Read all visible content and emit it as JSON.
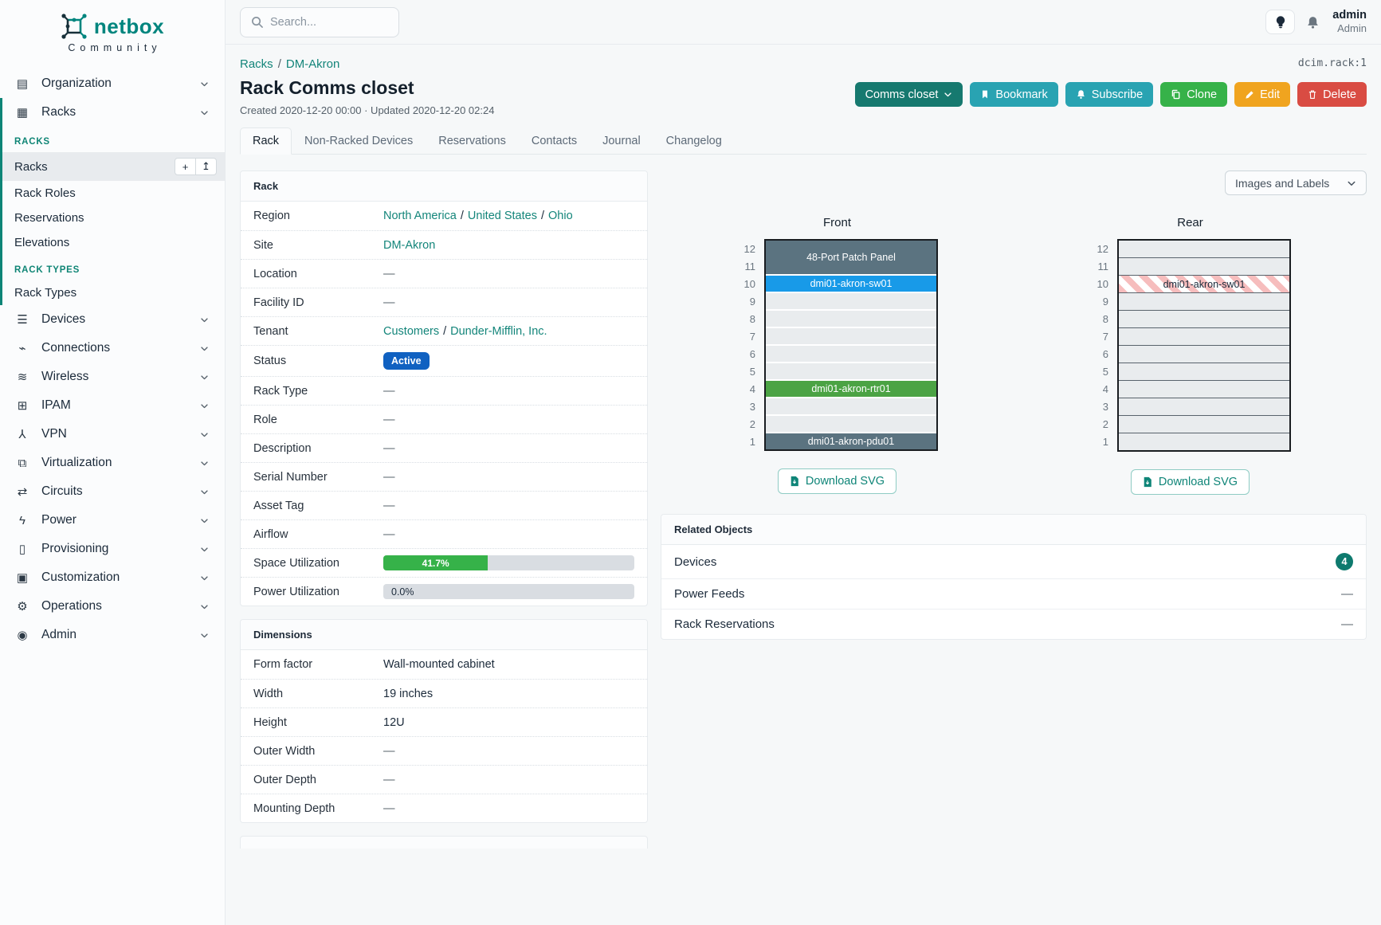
{
  "brand": {
    "name": "netbox",
    "tagline": "Community"
  },
  "topbar": {
    "search_placeholder": "Search...",
    "user_name": "admin",
    "user_role": "Admin"
  },
  "page": {
    "breadcrumbs": [
      "Racks",
      "DM-Akron"
    ],
    "object_id": "dcim.rack:1",
    "title": "Rack Comms closet",
    "meta": "Created 2020-12-20 00:00 · Updated 2020-12-20 02:24",
    "actions": [
      {
        "name": "comms-closet-dropdown",
        "label": "Comms closet",
        "style": "teal-dark",
        "icon": "chevron-down-icon",
        "icon_position": "after"
      },
      {
        "name": "bookmark-button",
        "label": "Bookmark",
        "style": "cyan",
        "icon": "bookmark-icon"
      },
      {
        "name": "subscribe-button",
        "label": "Subscribe",
        "style": "cyan",
        "icon": "bell-plus-icon"
      },
      {
        "name": "clone-button",
        "label": "Clone",
        "style": "green",
        "icon": "copy-icon"
      },
      {
        "name": "edit-button",
        "label": "Edit",
        "style": "orange",
        "icon": "pencil-icon"
      },
      {
        "name": "delete-button",
        "label": "Delete",
        "style": "red",
        "icon": "trash-icon"
      }
    ],
    "tabs": [
      {
        "label": "Rack",
        "active": true
      },
      {
        "label": "Non-Racked Devices",
        "active": false
      },
      {
        "label": "Reservations",
        "active": false
      },
      {
        "label": "Contacts",
        "active": false
      },
      {
        "label": "Journal",
        "active": false
      },
      {
        "label": "Changelog",
        "active": false
      }
    ]
  },
  "sidebar": {
    "items": [
      {
        "label": "Organization",
        "icon": "organization-icon",
        "glyph": "▤"
      },
      {
        "label": "Racks",
        "icon": "racks-icon",
        "glyph": "▦",
        "expanded": true,
        "groups": [
          {
            "heading": "RACKS",
            "links": [
              {
                "label": "Racks",
                "active": true,
                "actions": [
                  {
                    "icon": "plus-icon",
                    "glyph": "+"
                  },
                  {
                    "icon": "import-icon",
                    "glyph": "↥"
                  }
                ]
              },
              {
                "label": "Rack Roles",
                "active": false
              },
              {
                "label": "Reservations",
                "active": false
              },
              {
                "label": "Elevations",
                "active": false
              }
            ]
          },
          {
            "heading": "RACK TYPES",
            "links": [
              {
                "label": "Rack Types",
                "active": false
              }
            ]
          }
        ]
      },
      {
        "label": "Devices",
        "icon": "devices-icon",
        "glyph": "☰"
      },
      {
        "label": "Connections",
        "icon": "connections-icon",
        "glyph": "⌁"
      },
      {
        "label": "Wireless",
        "icon": "wireless-icon",
        "glyph": "≋"
      },
      {
        "label": "IPAM",
        "icon": "ipam-icon",
        "glyph": "⊞"
      },
      {
        "label": "VPN",
        "icon": "vpn-icon",
        "glyph": "⅄"
      },
      {
        "label": "Virtualization",
        "icon": "virtualization-icon",
        "glyph": "⧉"
      },
      {
        "label": "Circuits",
        "icon": "circuits-icon",
        "glyph": "⇄"
      },
      {
        "label": "Power",
        "icon": "power-icon",
        "glyph": "ϟ"
      },
      {
        "label": "Provisioning",
        "icon": "provisioning-icon",
        "glyph": "▯"
      },
      {
        "label": "Customization",
        "icon": "customization-icon",
        "glyph": "▣"
      },
      {
        "label": "Operations",
        "icon": "operations-icon",
        "glyph": "⚙"
      },
      {
        "label": "Admin",
        "icon": "admin-icon",
        "glyph": "◉"
      }
    ]
  },
  "rack_panel": {
    "title": "Rack",
    "rows": [
      {
        "label": "Region",
        "type": "links",
        "parts": [
          "North America",
          "United States",
          "Ohio"
        ]
      },
      {
        "label": "Site",
        "type": "links",
        "parts": [
          "DM-Akron"
        ]
      },
      {
        "label": "Location",
        "type": "empty",
        "value": "—"
      },
      {
        "label": "Facility ID",
        "type": "empty",
        "value": "—"
      },
      {
        "label": "Tenant",
        "type": "links",
        "parts": [
          "Customers",
          "Dunder-Mifflin, Inc."
        ]
      },
      {
        "label": "Status",
        "type": "badge",
        "value": "Active",
        "color": "#1061c1"
      },
      {
        "label": "Rack Type",
        "type": "empty",
        "value": "—"
      },
      {
        "label": "Role",
        "type": "empty",
        "value": "—"
      },
      {
        "label": "Description",
        "type": "empty",
        "value": "—"
      },
      {
        "label": "Serial Number",
        "type": "empty",
        "value": "—"
      },
      {
        "label": "Asset Tag",
        "type": "empty",
        "value": "—"
      },
      {
        "label": "Airflow",
        "type": "empty",
        "value": "—"
      },
      {
        "label": "Space Utilization",
        "type": "progress",
        "percent": 41.7,
        "text": "41.7%",
        "bar_color": "#36b249",
        "label_inside": true
      },
      {
        "label": "Power Utilization",
        "type": "progress",
        "percent": 0,
        "text": "0.0%",
        "bar_color": "#36b249",
        "label_inside": false
      }
    ]
  },
  "dimensions_panel": {
    "title": "Dimensions",
    "rows": [
      {
        "label": "Form factor",
        "type": "text",
        "value": "Wall-mounted cabinet"
      },
      {
        "label": "Width",
        "type": "text",
        "value": "19 inches"
      },
      {
        "label": "Height",
        "type": "text",
        "value": "12U"
      },
      {
        "label": "Outer Width",
        "type": "empty",
        "value": "—"
      },
      {
        "label": "Outer Depth",
        "type": "empty",
        "value": "—"
      },
      {
        "label": "Mounting Depth",
        "type": "empty",
        "value": "—"
      }
    ]
  },
  "related_objects": {
    "title": "Related Objects",
    "rows": [
      {
        "label": "Devices",
        "count": "4"
      },
      {
        "label": "Power Feeds",
        "value": "—"
      },
      {
        "label": "Rack Reservations",
        "value": "—"
      }
    ]
  },
  "elevations": {
    "view_selector": "Images and Labels",
    "download_label": "Download SVG",
    "height_units": 12,
    "front": {
      "title": "Front",
      "units": [
        {
          "u": 12,
          "span": 2,
          "label": "48-Port Patch Panel",
          "color": "#5b7380",
          "text_color": "#ffffff"
        },
        {
          "u": 10,
          "span": 1,
          "label": "dmi01-akron-sw01",
          "color": "#189ae8",
          "text_color": "#ffffff"
        },
        {
          "u": 4,
          "span": 1,
          "label": "dmi01-akron-rtr01",
          "color": "#4ba344",
          "text_color": "#ffffff"
        },
        {
          "u": 1,
          "span": 1,
          "label": "dmi01-akron-pdu01",
          "color": "#5b7380",
          "text_color": "#ffffff"
        }
      ]
    },
    "rear": {
      "title": "Rear",
      "units": [
        {
          "u": 10,
          "span": 1,
          "label": "dmi01-akron-sw01",
          "striped": true,
          "text_color": "#1b2a3a"
        }
      ]
    }
  },
  "colors": {
    "brand_teal": "#00857e",
    "link_teal": "#13857a",
    "status_active_blue": "#1061c1",
    "progress_green": "#36b249",
    "count_badge_teal": "#0e7a6e",
    "rack_empty_gray": "#e9ecee",
    "rack_slate": "#5b7380",
    "rack_blue": "#189ae8",
    "rack_green": "#4ba344"
  }
}
